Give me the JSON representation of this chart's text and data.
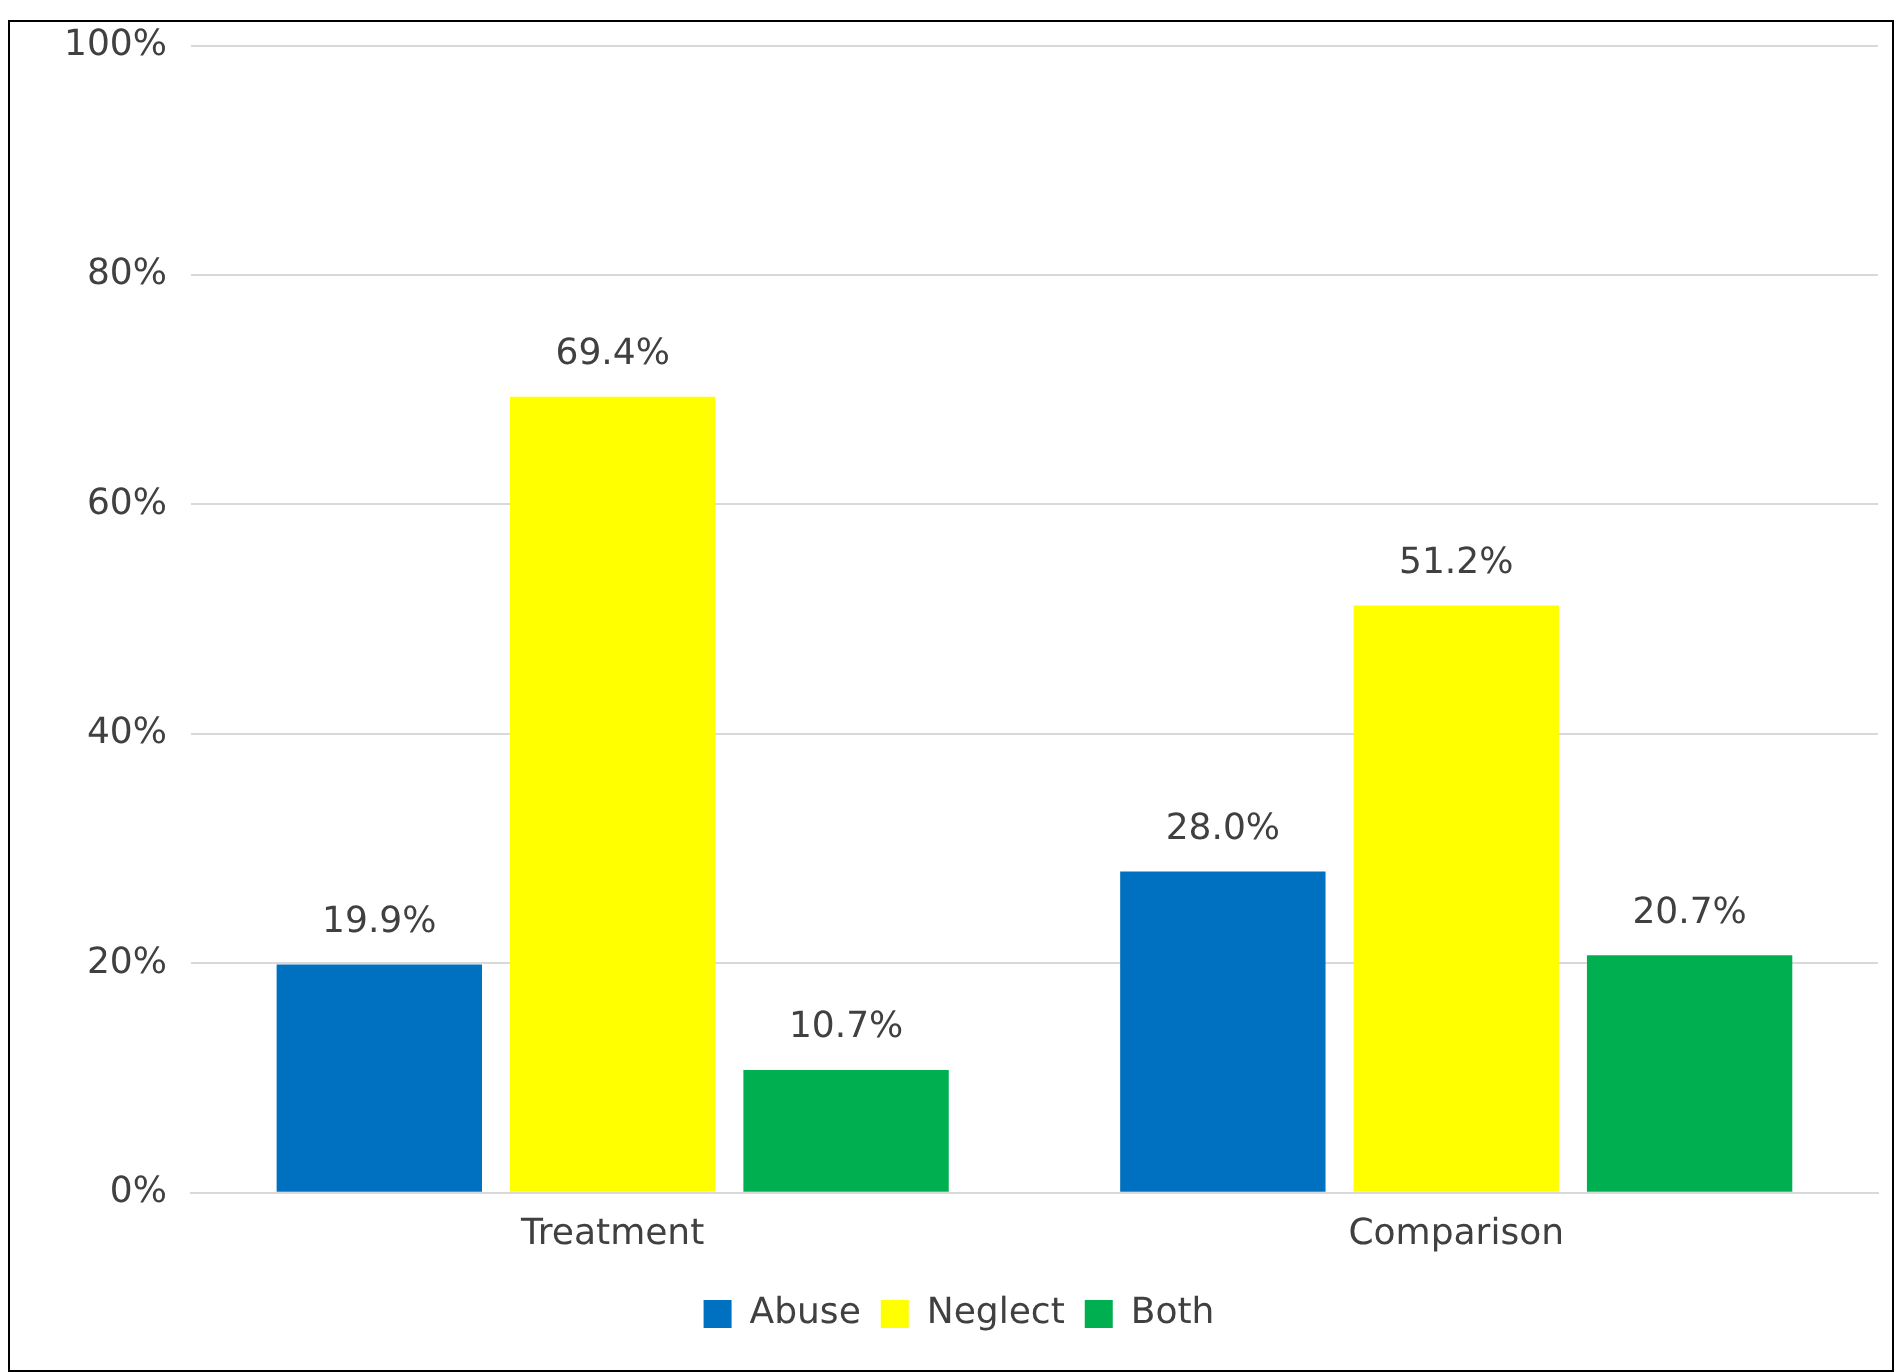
{
  "chart_data": {
    "type": "bar",
    "categories": [
      "Treatment",
      "Comparison"
    ],
    "series": [
      {
        "name": "Abuse",
        "color": "#0070c0",
        "values": [
          19.9,
          28.0
        ],
        "value_labels": [
          "19.9%",
          "28.0%"
        ]
      },
      {
        "name": "Neglect",
        "color": "#ffff00",
        "values": [
          69.4,
          51.2
        ],
        "value_labels": [
          "69.4%",
          "51.2%"
        ]
      },
      {
        "name": "Both",
        "color": "#00b050",
        "values": [
          10.7,
          20.7
        ],
        "value_labels": [
          "10.7%",
          "20.7%"
        ]
      }
    ],
    "ylim": [
      0,
      100
    ],
    "yticks": [
      {
        "value": 0,
        "label": "0%"
      },
      {
        "value": 20,
        "label": "20%"
      },
      {
        "value": 40,
        "label": "40%"
      },
      {
        "value": 60,
        "label": "60%"
      },
      {
        "value": 80,
        "label": "80%"
      },
      {
        "value": 100,
        "label": "100%"
      }
    ],
    "grid": "y",
    "legend": "bottom"
  }
}
